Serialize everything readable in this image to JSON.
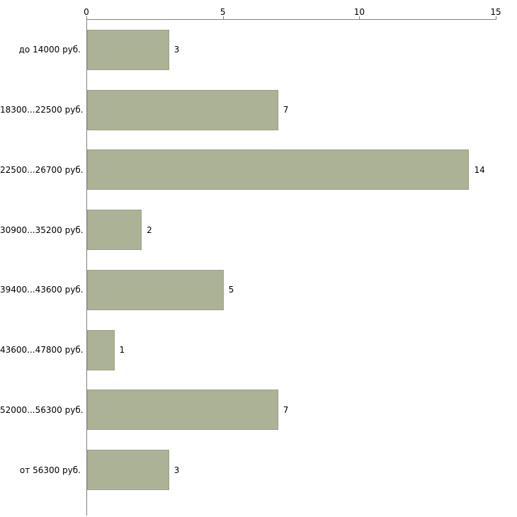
{
  "chart_data": {
    "type": "bar",
    "orientation": "horizontal",
    "title": "",
    "xlabel": "",
    "ylabel": "",
    "categories": [
      "до 14000 руб.",
      "18300...22500 руб.",
      "22500...26700 руб.",
      "30900...35200 руб.",
      "39400...43600 руб.",
      "43600...47800 руб.",
      "52000...56300 руб.",
      "от 56300 руб."
    ],
    "values": [
      3,
      7,
      14,
      2,
      5,
      1,
      7,
      3
    ],
    "xlim": [
      0,
      15
    ],
    "x_ticks": [
      0,
      5,
      10,
      15
    ],
    "axis_position": "top",
    "grid": false,
    "legend": "none",
    "bar_color": "#abb295",
    "bar_border_color": "#9aa287",
    "axis_color": "#808080",
    "text_color": "#000000",
    "background_color": "#ffffff"
  }
}
